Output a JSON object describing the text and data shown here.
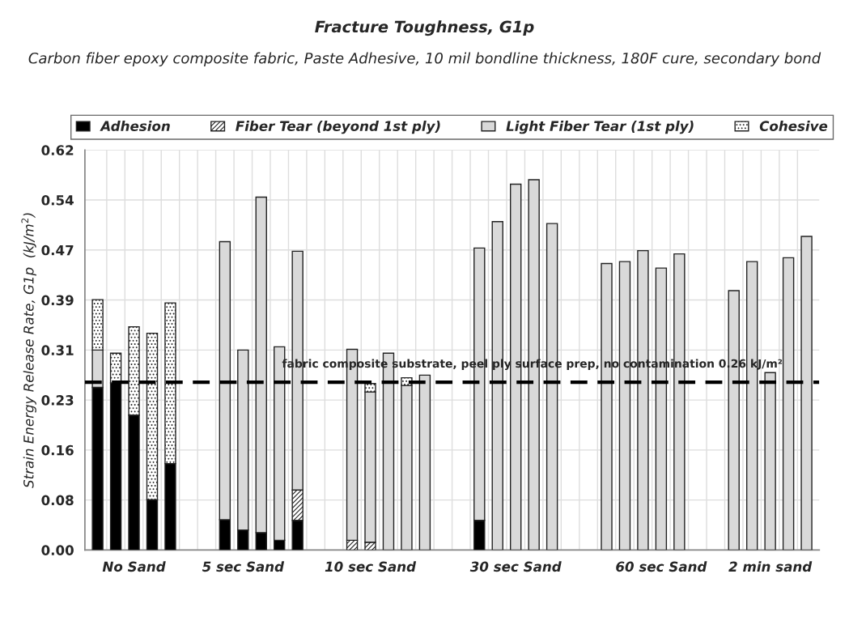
{
  "chart_data": {
    "type": "bar",
    "stacked": true,
    "title": "Fracture Toughness, G1p",
    "subtitle": "Carbon fiber epoxy composite fabric, Paste Adhesive, 10 mil bondline thickness, 180F cure, secondary bond",
    "ylabel": "Strain Energy Release Rate, G1p  (kJ/m$^{2}$)",
    "categories": [
      null,
      null,
      "No Sand",
      null,
      null,
      null,
      null,
      null,
      "5 sec Sand",
      null,
      null,
      null,
      null,
      null,
      null,
      "10 sec Sand",
      null,
      null,
      null,
      null,
      null,
      null,
      null,
      "30 sec Sand",
      null,
      null,
      null,
      null,
      null,
      null,
      null,
      "60 sec Sand",
      null,
      null,
      null,
      null,
      null,
      "2 min sand",
      null,
      null
    ],
    "series": [
      {
        "name": "Adhesion",
        "color": "#000000",
        "values": [
          0.252,
          0.259,
          0.209,
          0.078,
          0.134,
          null,
          null,
          0.047,
          0.031,
          0.027,
          0.015,
          0.046,
          null,
          null,
          null,
          null,
          null,
          null,
          null,
          null,
          null,
          0.046,
          null,
          null,
          null,
          null,
          null,
          null,
          null,
          null,
          null,
          null,
          null,
          null,
          null,
          null,
          null,
          null,
          null,
          null
        ]
      },
      {
        "name": "Fiber Tear (beyond 1st ply)",
        "color": "#222222",
        "values": [
          null,
          null,
          null,
          null,
          null,
          null,
          null,
          null,
          null,
          null,
          null,
          0.047,
          null,
          null,
          0.015,
          0.012,
          null,
          null,
          null,
          null,
          null,
          null,
          null,
          null,
          null,
          null,
          null,
          null,
          null,
          null,
          null,
          null,
          null,
          null,
          null,
          null,
          null,
          null,
          null,
          null
        ]
      },
      {
        "name": "Light Fiber Tear (1st ply)",
        "color": "#d9d9d9",
        "values": [
          0.058,
          null,
          null,
          null,
          null,
          null,
          null,
          0.431,
          0.279,
          0.52,
          0.3,
          0.37,
          null,
          null,
          0.296,
          0.233,
          0.305,
          0.255,
          0.271,
          null,
          null,
          0.422,
          0.509,
          0.567,
          0.574,
          0.506,
          null,
          null,
          0.444,
          0.447,
          0.464,
          0.437,
          0.459,
          null,
          null,
          0.402,
          0.447,
          0.275,
          0.453,
          0.486
        ]
      },
      {
        "name": "Cohesive",
        "color": "#222222",
        "values": [
          0.078,
          0.046,
          0.137,
          0.258,
          0.249,
          null,
          null,
          null,
          null,
          null,
          null,
          null,
          null,
          null,
          null,
          0.013,
          null,
          0.012,
          null,
          null,
          null,
          null,
          null,
          null,
          null,
          null,
          null,
          null,
          null,
          null,
          null,
          null,
          null,
          null,
          null,
          null,
          null,
          null,
          null,
          null
        ]
      }
    ],
    "ylim": [
      0,
      0.62
    ],
    "yticks": [
      {
        "value": 0,
        "label": "0.00"
      },
      {
        "value": 0.0775,
        "label": "0.08"
      },
      {
        "value": 0.155,
        "label": "0.16"
      },
      {
        "value": 0.2325,
        "label": "0.23"
      },
      {
        "value": 0.31,
        "label": "0.31"
      },
      {
        "value": 0.3875,
        "label": "0.39"
      },
      {
        "value": 0.465,
        "label": "0.47"
      },
      {
        "value": 0.5425,
        "label": "0.54"
      },
      {
        "value": 0.62,
        "label": "0.62"
      }
    ],
    "ref_lines": [
      {
        "axis": "y",
        "value": 0.26,
        "label": "fabric composite substrate, peel ply surface prep, no contamination 0.26 kJ/m²",
        "color": "#000000",
        "line_style": "dashed"
      }
    ],
    "grid": true,
    "legend": "top"
  }
}
